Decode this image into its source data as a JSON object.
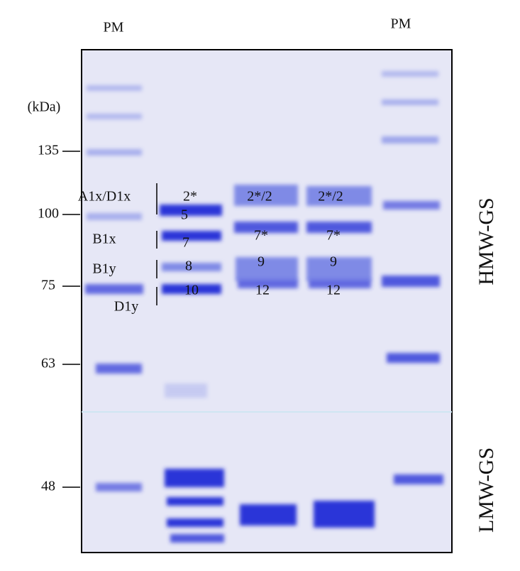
{
  "lanes": {
    "left": "PM",
    "right": "PM"
  },
  "markers": {
    "unit": "(kDa)",
    "labels": [
      "135",
      "100",
      "75",
      "63",
      "48"
    ]
  },
  "loci": [
    "A1x/D1x",
    "B1x",
    "B1y",
    "D1y"
  ],
  "bands": {
    "lane2": [
      "2*",
      "5",
      "7",
      "8",
      "10"
    ],
    "lane3": [
      "2*/2",
      "7*",
      "9",
      "12"
    ],
    "lane4": [
      "2*/2",
      "7*",
      "9",
      "12"
    ]
  },
  "regions": {
    "hmw": "HMW-GS",
    "lmw": "LMW-GS"
  }
}
